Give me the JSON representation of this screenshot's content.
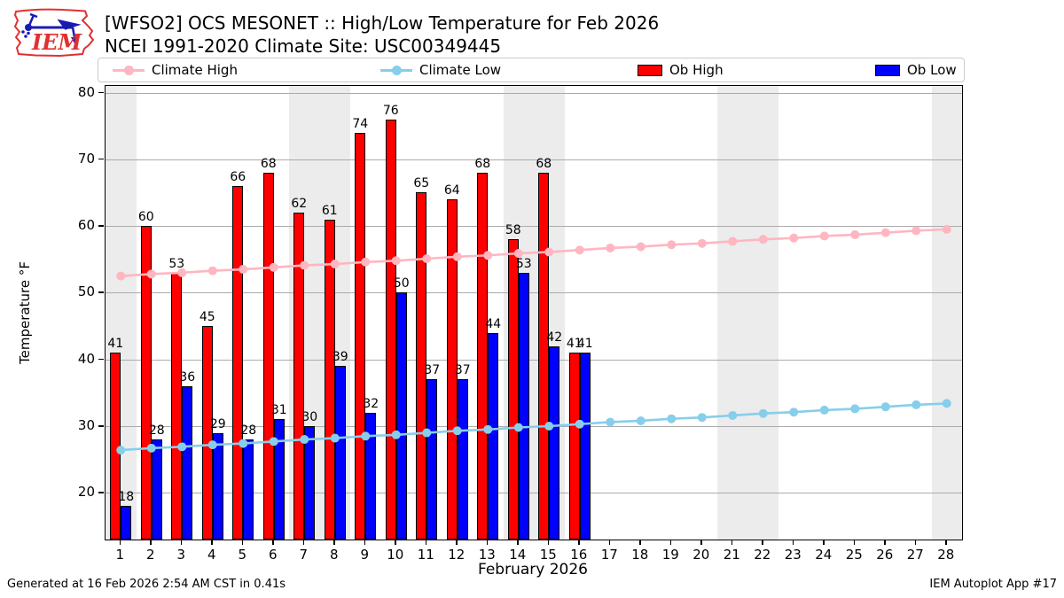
{
  "header": {
    "title_line1": "[WFSO2] OCS MESONET :: High/Low Temperature for Feb 2026",
    "title_line2": "NCEI 1991-2020 Climate Site: USC00349445",
    "logo_text": "IEM"
  },
  "legend": [
    {
      "label": "Climate High",
      "type": "line",
      "color": "#ffb6c1"
    },
    {
      "label": "Climate Low",
      "type": "line",
      "color": "#87ceeb"
    },
    {
      "label": "Ob High",
      "type": "patch",
      "color": "#ff0000"
    },
    {
      "label": "Ob Low",
      "type": "patch",
      "color": "#0000ff"
    }
  ],
  "footer": {
    "left": "Generated at 16 Feb 2026 2:54 AM CST in 0.41s",
    "right": "IEM Autoplot App #17"
  },
  "chart_data": {
    "type": "bar",
    "title": "[WFSO2] OCS MESONET :: High/Low Temperature for Feb 2026",
    "subtitle": "NCEI 1991-2020 Climate Site: USC00349445",
    "xlabel": "February 2026",
    "ylabel": "Temperature °F",
    "ylim": [
      13,
      81
    ],
    "yticks": [
      20,
      30,
      40,
      50,
      60,
      70,
      80
    ],
    "x_days": [
      1,
      2,
      3,
      4,
      5,
      6,
      7,
      8,
      9,
      10,
      11,
      12,
      13,
      14,
      15,
      16,
      17,
      18,
      19,
      20,
      21,
      22,
      23,
      24,
      25,
      26,
      27,
      28
    ],
    "weekend_days": [
      1,
      7,
      8,
      14,
      15,
      21,
      22,
      28
    ],
    "grid": true,
    "legend_position": "top",
    "series": [
      {
        "name": "Climate High",
        "type": "line",
        "color": "#ffb6c1",
        "values": [
          52.5,
          52.8,
          53.0,
          53.3,
          53.5,
          53.8,
          54.1,
          54.3,
          54.6,
          54.8,
          55.1,
          55.4,
          55.6,
          55.9,
          56.1,
          56.4,
          56.7,
          56.9,
          57.2,
          57.4,
          57.7,
          58.0,
          58.2,
          58.5,
          58.7,
          59.0,
          59.3,
          59.5
        ]
      },
      {
        "name": "Climate Low",
        "type": "line",
        "color": "#87ceeb",
        "values": [
          26.4,
          26.7,
          26.9,
          27.2,
          27.4,
          27.7,
          28.0,
          28.2,
          28.5,
          28.7,
          29.0,
          29.3,
          29.5,
          29.8,
          30.0,
          30.3,
          30.6,
          30.8,
          31.1,
          31.3,
          31.6,
          31.9,
          32.1,
          32.4,
          32.6,
          32.9,
          33.2,
          33.4
        ]
      },
      {
        "name": "Ob High",
        "type": "bar",
        "color": "#ff0000",
        "values": [
          41,
          60,
          53,
          45,
          66,
          68,
          62,
          61,
          74,
          76,
          65,
          64,
          68,
          58,
          68,
          41
        ]
      },
      {
        "name": "Ob Low",
        "type": "bar",
        "color": "#0000ff",
        "values": [
          18,
          28,
          36,
          29,
          28,
          31,
          30,
          39,
          32,
          50,
          37,
          37,
          44,
          53,
          42,
          41
        ]
      }
    ]
  }
}
